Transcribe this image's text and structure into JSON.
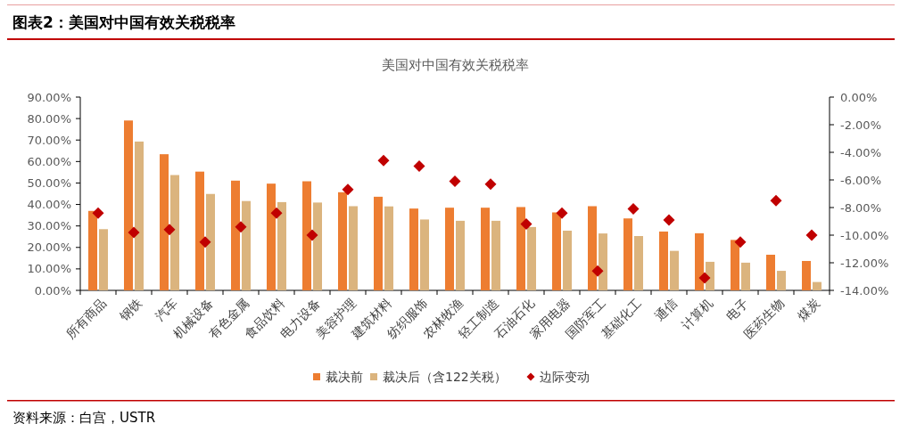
{
  "chart_data": {
    "type": "bar",
    "title": "图表2：美国对中国有效关税税率",
    "subtitle": "美国对中国有效关税税率",
    "categories": [
      "所有商品",
      "钢铁",
      "汽车",
      "机械设备",
      "有色金属",
      "食品饮料",
      "电力设备",
      "美容护理",
      "建筑材料",
      "纺织服饰",
      "农林牧渔",
      "轻工制造",
      "石油石化",
      "家用电器",
      "国防军工",
      "基础化工",
      "通信",
      "计算机",
      "电子",
      "医药生物",
      "煤炭"
    ],
    "series": [
      {
        "name": "裁决前",
        "color": "#ed7d31",
        "values": [
          37.0,
          79.1,
          63.4,
          55.3,
          51.1,
          49.7,
          50.8,
          45.7,
          43.6,
          38.1,
          38.5,
          38.5,
          38.8,
          36.3,
          39.2,
          33.5,
          27.4,
          26.6,
          23.5,
          16.6,
          13.7
        ]
      },
      {
        "name": "裁决后（含122关税）",
        "color": "#dbb47e",
        "values": [
          28.5,
          69.3,
          53.7,
          44.9,
          41.6,
          41.1,
          40.9,
          39.2,
          39.1,
          33.0,
          32.4,
          32.4,
          29.5,
          27.8,
          26.5,
          25.3,
          18.4,
          13.3,
          12.9,
          9.1,
          3.9
        ]
      },
      {
        "name": "边际变动",
        "type": "scatter",
        "axis": "y2",
        "marker": "diamond",
        "color": "#c00000",
        "values": [
          -8.4,
          -9.8,
          -9.6,
          -10.5,
          -9.4,
          -8.4,
          -10.0,
          -6.7,
          -4.6,
          -5.0,
          -6.1,
          -6.3,
          -9.2,
          -8.4,
          -12.6,
          -8.1,
          -8.9,
          -13.1,
          -10.5,
          -7.5,
          -10.0
        ]
      }
    ],
    "ylim": [
      0,
      90
    ],
    "yticks": [
      {
        "value": 0,
        "label": "0.00%"
      },
      {
        "value": 10,
        "label": "10.00%"
      },
      {
        "value": 20,
        "label": "20.00%"
      },
      {
        "value": 30,
        "label": "30.00%"
      },
      {
        "value": 40,
        "label": "40.00%"
      },
      {
        "value": 50,
        "label": "50.00%"
      },
      {
        "value": 60,
        "label": "60.00%"
      },
      {
        "value": 70,
        "label": "70.00%"
      },
      {
        "value": 80,
        "label": "80.00%"
      },
      {
        "value": 90,
        "label": "90.00%"
      }
    ],
    "y2lim": [
      -14,
      0
    ],
    "y2ticks": [
      {
        "value": 0,
        "label": "0.00%"
      },
      {
        "value": -2,
        "label": "-2.00%"
      },
      {
        "value": -4,
        "label": "-4.00%"
      },
      {
        "value": -6,
        "label": "-6.00%"
      },
      {
        "value": -8,
        "label": "-8.00%"
      },
      {
        "value": -10,
        "label": "-10.00%"
      },
      {
        "value": -12,
        "label": "-12.00%"
      },
      {
        "value": -14,
        "label": "-14.00%"
      }
    ],
    "legend": "bottom",
    "annotations": [
      "资料来源：白宫，USTR"
    ]
  }
}
